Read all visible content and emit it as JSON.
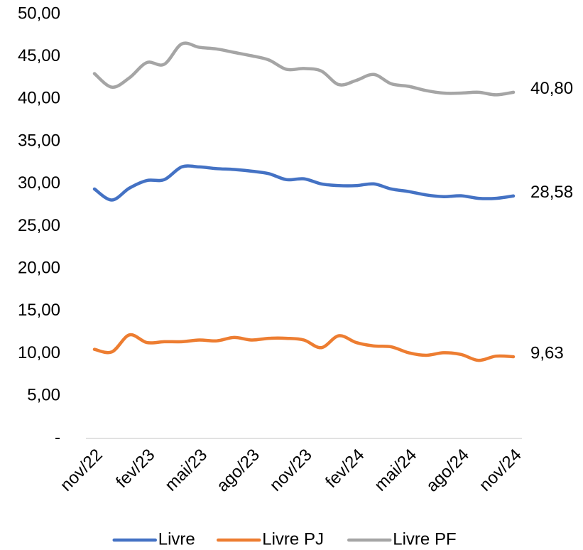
{
  "chart_data": {
    "type": "line",
    "categories": [
      "nov/22",
      null,
      null,
      "fev/23",
      null,
      null,
      "mai/23",
      null,
      null,
      "ago/23",
      null,
      null,
      "nov/23",
      null,
      null,
      "fev/24",
      null,
      null,
      "mai/24",
      null,
      null,
      "ago/24",
      null,
      null,
      "nov/24"
    ],
    "series": [
      {
        "name": "Livre",
        "color": "#4472c4",
        "values": [
          29.4,
          28.1,
          29.5,
          30.4,
          30.5,
          32.0,
          32.0,
          31.8,
          31.7,
          31.5,
          31.2,
          30.5,
          30.6,
          30.0,
          29.8,
          29.8,
          30.0,
          29.4,
          29.1,
          28.7,
          28.5,
          28.6,
          28.3,
          28.3,
          28.58
        ],
        "value_labels": [
          null,
          null,
          null,
          null,
          null,
          null,
          null,
          null,
          null,
          null,
          null,
          null,
          null,
          null,
          null,
          null,
          null,
          null,
          null,
          null,
          null,
          null,
          null,
          null,
          "28,58"
        ]
      },
      {
        "name": "Livre PJ",
        "color": "#ed7d31",
        "values": [
          10.5,
          10.2,
          12.2,
          11.3,
          11.4,
          11.4,
          11.6,
          11.5,
          11.9,
          11.6,
          11.8,
          11.8,
          11.6,
          10.7,
          12.1,
          11.3,
          10.9,
          10.8,
          10.1,
          9.8,
          10.1,
          9.9,
          9.2,
          9.7,
          9.63
        ],
        "value_labels": [
          null,
          null,
          null,
          null,
          null,
          null,
          null,
          null,
          null,
          null,
          null,
          null,
          null,
          null,
          null,
          null,
          null,
          null,
          null,
          null,
          null,
          null,
          null,
          null,
          "9,63"
        ]
      },
      {
        "name": "Livre PF",
        "color": "#a5a5a5",
        "values": [
          43.0,
          41.4,
          42.5,
          44.3,
          44.1,
          46.5,
          46.1,
          45.9,
          45.5,
          45.1,
          44.6,
          43.5,
          43.6,
          43.3,
          41.7,
          42.2,
          42.9,
          41.8,
          41.5,
          41.0,
          40.7,
          40.7,
          40.8,
          40.5,
          40.8
        ],
        "value_labels": [
          null,
          null,
          null,
          null,
          null,
          null,
          null,
          null,
          null,
          null,
          null,
          null,
          null,
          null,
          null,
          null,
          null,
          null,
          null,
          null,
          null,
          null,
          null,
          null,
          "40,80"
        ]
      }
    ],
    "ylim": [
      0,
      50
    ],
    "yticks": [
      {
        "value": 0,
        "label": "-"
      },
      {
        "value": 5,
        "label": "5,00"
      },
      {
        "value": 10,
        "label": "10,00"
      },
      {
        "value": 15,
        "label": "15,00"
      },
      {
        "value": 20,
        "label": "20,00"
      },
      {
        "value": 25,
        "label": "25,00"
      },
      {
        "value": 30,
        "label": "30,00"
      },
      {
        "value": 35,
        "label": "35,00"
      },
      {
        "value": 40,
        "label": "40,00"
      },
      {
        "value": 45,
        "label": "45,00"
      },
      {
        "value": 50,
        "label": "50,00"
      }
    ],
    "grid": false,
    "legend": "bottom"
  }
}
